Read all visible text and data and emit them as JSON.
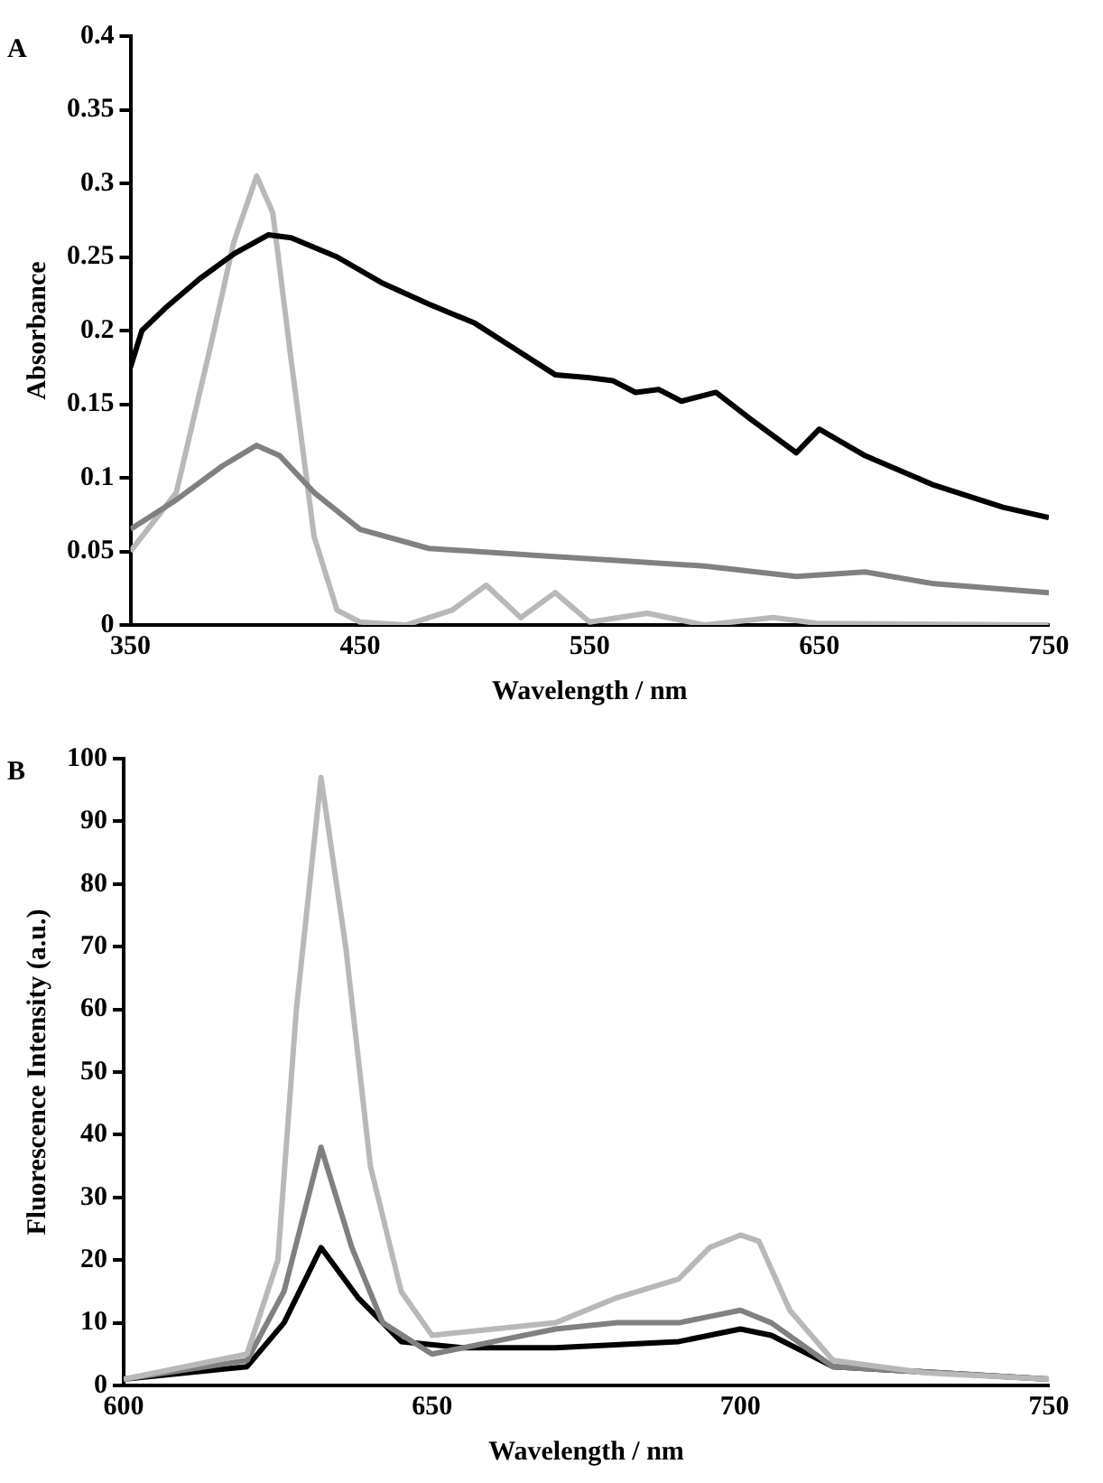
{
  "chart_data": [
    {
      "type": "line",
      "title": "A",
      "xlabel": "Wavelength / nm",
      "ylabel": "Absorbance",
      "xlim": [
        350,
        750
      ],
      "xticks": [
        350,
        450,
        550,
        650,
        750
      ],
      "ylim": [
        0,
        0.4
      ],
      "yticks": [
        0,
        0.05,
        0.1,
        0.15,
        0.2,
        0.25,
        0.3,
        0.35,
        0.4
      ],
      "grid": false,
      "legend": false,
      "marker": "none",
      "line_style": "solid",
      "series": [
        {
          "color": "#000000",
          "x": [
            350,
            355,
            365,
            380,
            395,
            410,
            420,
            440,
            460,
            480,
            500,
            520,
            535,
            550,
            560,
            570,
            580,
            590,
            605,
            620,
            640,
            650,
            670,
            700,
            730,
            750
          ],
          "values": [
            0.175,
            0.2,
            0.215,
            0.235,
            0.252,
            0.265,
            0.263,
            0.25,
            0.232,
            0.218,
            0.205,
            0.185,
            0.17,
            0.168,
            0.166,
            0.158,
            0.16,
            0.152,
            0.158,
            0.14,
            0.117,
            0.133,
            0.115,
            0.095,
            0.08,
            0.073
          ]
        },
        {
          "color": "#808080",
          "x": [
            350,
            370,
            390,
            405,
            415,
            430,
            450,
            480,
            500,
            530,
            560,
            600,
            640,
            670,
            700,
            750
          ],
          "values": [
            0.065,
            0.085,
            0.108,
            0.122,
            0.115,
            0.09,
            0.065,
            0.052,
            0.05,
            0.047,
            0.044,
            0.04,
            0.033,
            0.036,
            0.028,
            0.022
          ]
        },
        {
          "color": "#b8b8b8",
          "x": [
            350,
            370,
            385,
            395,
            405,
            412,
            420,
            430,
            440,
            450,
            470,
            490,
            505,
            520,
            535,
            550,
            575,
            600,
            630,
            650,
            750
          ],
          "values": [
            0.05,
            0.09,
            0.19,
            0.26,
            0.305,
            0.28,
            0.18,
            0.06,
            0.01,
            0.002,
            0,
            0.01,
            0.027,
            0.005,
            0.022,
            0.002,
            0.008,
            0,
            0.005,
            0.001,
            0
          ]
        }
      ]
    },
    {
      "type": "line",
      "title": "B",
      "xlabel": "Wavelength / nm",
      "ylabel": "Fluorescence Intensity (a.u.)",
      "xlim": [
        600,
        750
      ],
      "xticks": [
        600,
        650,
        700,
        750
      ],
      "ylim": [
        0,
        100
      ],
      "yticks": [
        0,
        10,
        20,
        30,
        40,
        50,
        60,
        70,
        80,
        90,
        100
      ],
      "grid": false,
      "legend": false,
      "marker": "none",
      "line_style": "solid",
      "series": [
        {
          "color": "#b8b8b8",
          "x": [
            600,
            620,
            625,
            628,
            632,
            636,
            640,
            645,
            650,
            660,
            670,
            680,
            690,
            695,
            700,
            703,
            708,
            715,
            730,
            750
          ],
          "values": [
            1,
            5,
            20,
            60,
            97,
            70,
            35,
            15,
            8,
            9,
            10,
            14,
            17,
            22,
            24,
            23,
            12,
            4,
            2,
            1
          ]
        },
        {
          "color": "#808080",
          "x": [
            600,
            620,
            626,
            632,
            637,
            642,
            650,
            660,
            670,
            680,
            690,
            695,
            700,
            705,
            715,
            750
          ],
          "values": [
            1,
            4,
            15,
            38,
            22,
            10,
            5,
            7,
            9,
            10,
            10,
            11,
            12,
            10,
            3,
            1
          ]
        },
        {
          "color": "#000000",
          "x": [
            600,
            620,
            626,
            632,
            638,
            645,
            655,
            670,
            690,
            700,
            705,
            715,
            750
          ],
          "values": [
            1,
            3,
            10,
            22,
            14,
            7,
            6,
            6,
            7,
            9,
            8,
            3,
            1
          ]
        }
      ]
    }
  ]
}
